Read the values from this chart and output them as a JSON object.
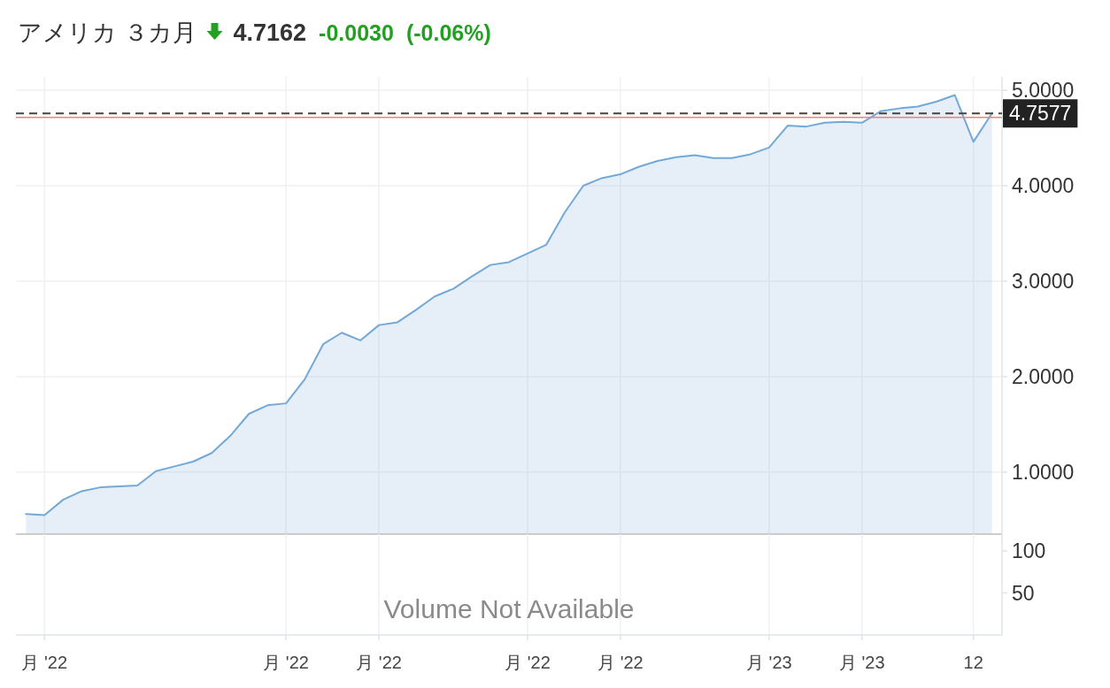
{
  "chart_data": [
    {
      "type": "area",
      "title": "アメリカ ３カ月",
      "annotations": [
        "4.7162",
        "-0.0030",
        "(-0.06%)"
      ],
      "categories": [
        null,
        null,
        null,
        null,
        null,
        null,
        null,
        null,
        null,
        null,
        null,
        null,
        null,
        null,
        null,
        null,
        null,
        null,
        null,
        null,
        null,
        null,
        null,
        null,
        null,
        null,
        null,
        null,
        null,
        null,
        null,
        null,
        null,
        null,
        null,
        null,
        null,
        null,
        null,
        null,
        null,
        null,
        null,
        null,
        null,
        null,
        null,
        null,
        null,
        null,
        null,
        null,
        null
      ],
      "series": [
        {
          "color": "#72a9d8",
          "values": [
            0.56,
            0.55,
            0.71,
            0.8,
            0.84,
            0.85,
            0.86,
            1.01,
            1.06,
            1.11,
            1.2,
            1.38,
            1.61,
            1.7,
            1.72,
            1.97,
            2.34,
            2.46,
            2.38,
            2.54,
            2.57,
            2.7,
            2.84,
            2.92,
            3.05,
            3.17,
            3.2,
            3.29,
            3.38,
            3.72,
            4.0,
            4.08,
            4.12,
            4.2,
            4.26,
            4.3,
            4.32,
            4.29,
            4.29,
            4.33,
            4.4,
            4.63,
            4.62,
            4.66,
            4.67,
            4.66,
            4.78,
            4.81,
            4.83,
            4.88,
            4.95,
            4.46,
            4.76
          ]
        }
      ],
      "ylim": [
        0.35,
        5.14
      ],
      "yticks": [
        {
          "value": 1,
          "label": "1.0000"
        },
        {
          "value": 2,
          "label": "2.0000"
        },
        {
          "value": 3,
          "label": "3.0000"
        },
        {
          "value": 4,
          "label": "4.0000"
        },
        {
          "value": 5,
          "label": "5.0000"
        }
      ],
      "ref_lines": [
        {
          "axis": "y",
          "value": 4.7577,
          "label": "4.7577",
          "color": "#444444",
          "line_style": "dashed"
        },
        {
          "axis": "y",
          "value": 4.7162,
          "color": "#f08080",
          "line_style": "solid"
        }
      ],
      "grid": true,
      "tick_labels": "y"
    },
    {
      "type": "bar",
      "annotations": [
        "Volume Not Available"
      ],
      "categories": [
        null,
        "月 '22",
        null,
        null,
        null,
        null,
        null,
        null,
        null,
        null,
        null,
        null,
        null,
        null,
        "月 '22",
        null,
        null,
        null,
        null,
        "月 '22",
        null,
        null,
        null,
        null,
        null,
        null,
        null,
        "月 '22",
        null,
        null,
        null,
        null,
        "月 '22",
        null,
        null,
        null,
        null,
        null,
        null,
        null,
        "月 '23",
        null,
        null,
        null,
        null,
        "月 '23",
        null,
        null,
        null,
        null,
        null,
        "12",
        null
      ],
      "values": [
        null,
        null,
        null,
        null,
        null,
        null,
        null,
        null,
        null,
        null,
        null,
        null,
        null,
        null,
        null,
        null,
        null,
        null,
        null,
        null,
        null,
        null,
        null,
        null,
        null,
        null,
        null,
        null,
        null,
        null,
        null,
        null,
        null,
        null,
        null,
        null,
        null,
        null,
        null,
        null,
        null,
        null,
        null,
        null,
        null,
        null,
        null,
        null,
        null,
        null,
        null,
        null,
        null
      ],
      "ylim": [
        0,
        120
      ],
      "yticks": [
        100,
        50
      ],
      "grid": "x"
    }
  ]
}
